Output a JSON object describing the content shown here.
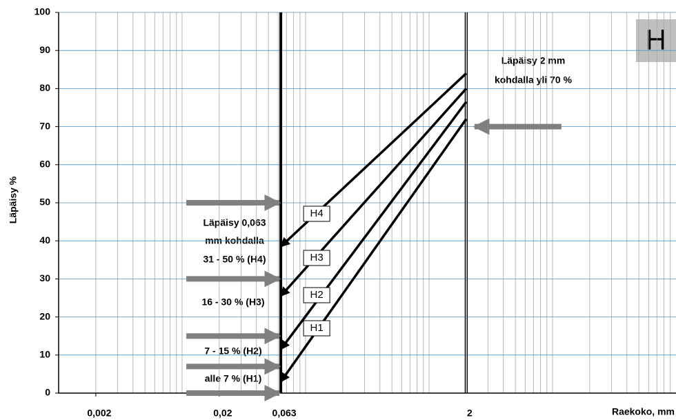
{
  "chart_data": {
    "type": "line",
    "y_label": "Läpäisy %",
    "x_label": "Raekoko, mm",
    "panel_label": "H",
    "xlim": [
      0.001,
      100
    ],
    "log_x": true,
    "ylim": [
      0,
      100
    ],
    "yticks": [
      0,
      10,
      20,
      30,
      40,
      50,
      60,
      70,
      80,
      90,
      100
    ],
    "xticks": [
      {
        "value": 0.002,
        "label": "0,002"
      },
      {
        "value": 0.02,
        "label": "0,02"
      },
      {
        "value": 0.063,
        "label": "0,063"
      },
      2
    ],
    "xtick_style": [
      "none",
      "none",
      "thick",
      "double"
    ],
    "grid": true,
    "series": [
      {
        "name": "H1",
        "color": "#000000",
        "x": [
          0.063,
          2
        ],
        "values": [
          3,
          72
        ]
      },
      {
        "name": "H2",
        "color": "#000000",
        "x": [
          0.063,
          2
        ],
        "values": [
          11.5,
          76.5
        ]
      },
      {
        "name": "H3",
        "color": "#000000",
        "x": [
          0.063,
          2
        ],
        "values": [
          25.5,
          80
        ]
      },
      {
        "name": "H4",
        "color": "#000000",
        "x": [
          0.063,
          2
        ],
        "values": [
          38.5,
          84
        ]
      }
    ],
    "arrows_at_0063": [
      50,
      30,
      15,
      7,
      0
    ],
    "arrow_at_2": 70,
    "arrow_color": "#808080",
    "annotations_0063": [
      "Läpäisy 0,063",
      "mm kohdalla",
      "31 - 50 % (H4)",
      "16 - 30 % (H3)",
      "7 - 15 % (H2)",
      "alle 7 % (H1)"
    ],
    "annotations_2": [
      "Läpäisy 2 mm",
      "kohdalla yli 70 %"
    ]
  }
}
